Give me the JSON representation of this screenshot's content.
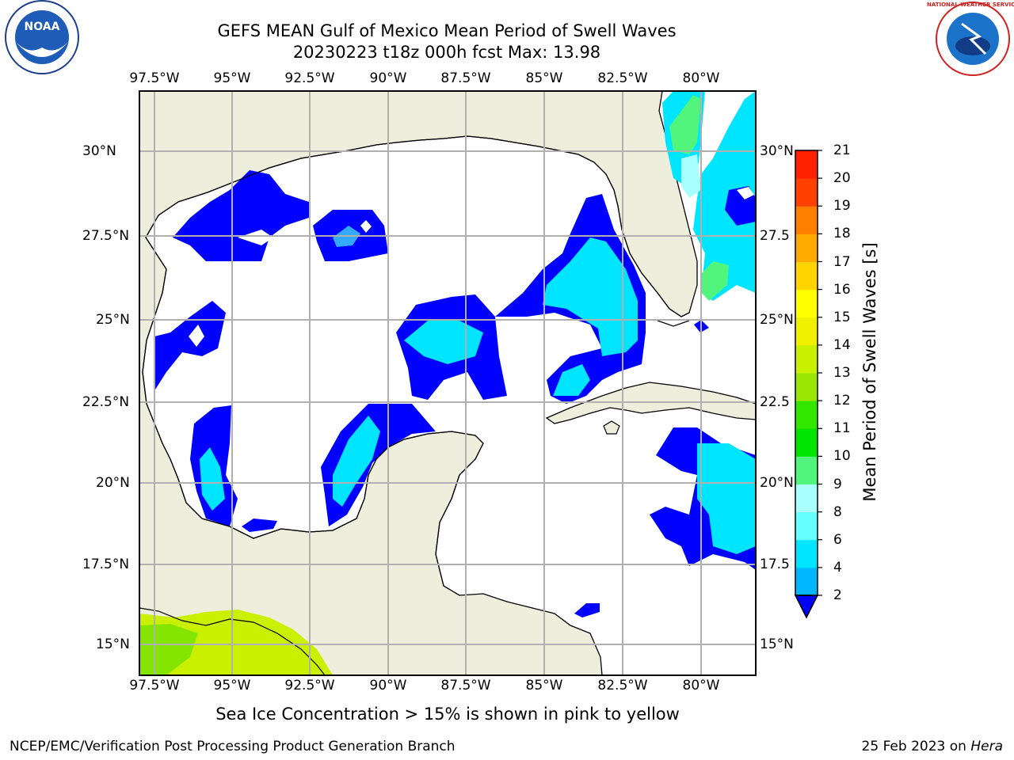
{
  "title_line1": "GEFS MEAN Gulf of Mexico Mean Period of Swell Waves",
  "title_line2": "20230223 t18z 000h fcst   Max: 13.98",
  "lon_ticks": [
    "97.5°W",
    "95°W",
    "92.5°W",
    "90°W",
    "87.5°W",
    "85°W",
    "82.5°W",
    "80°W"
  ],
  "lat_ticks": [
    "30°N",
    "27.5°N",
    "25°N",
    "22.5°N",
    "20°N",
    "17.5°N",
    "15°N"
  ],
  "right_lat_ticks": [
    "30°N",
    "27.5",
    "25°N",
    "22.5",
    "20°N",
    "17.5",
    "15°N"
  ],
  "colorbar": {
    "title": "Mean Period of Swell Waves [s]",
    "labels": [
      "2",
      "4",
      "6",
      "8",
      "9",
      "10",
      "11",
      "12",
      "13",
      "14",
      "15",
      "16",
      "17",
      "18",
      "19",
      "20",
      "21"
    ],
    "colors": [
      "#0026ff",
      "#00b7ff",
      "#00e5ff",
      "#66ffff",
      "#aaffff",
      "#52f57c",
      "#00e600",
      "#33e600",
      "#99e600",
      "#c8f000",
      "#f0f000",
      "#ffff00",
      "#ffd400",
      "#ffaa00",
      "#ff8000",
      "#ff4000",
      "#ff2000",
      "#ff0000"
    ],
    "extend_color": "#0000ff"
  },
  "land_color": "#eeeedd",
  "footer_note": "Sea Ice Concentration > 15% is shown in pink to yellow",
  "credit_left": "NCEP/EMC/Verification Post Processing Product Generation Branch",
  "credit_right_date": "25 Feb 2023 on ",
  "credit_right_host": "Hera",
  "logos": {
    "left": "NOAA",
    "right": "NATIONAL WEATHER SERVICE"
  }
}
